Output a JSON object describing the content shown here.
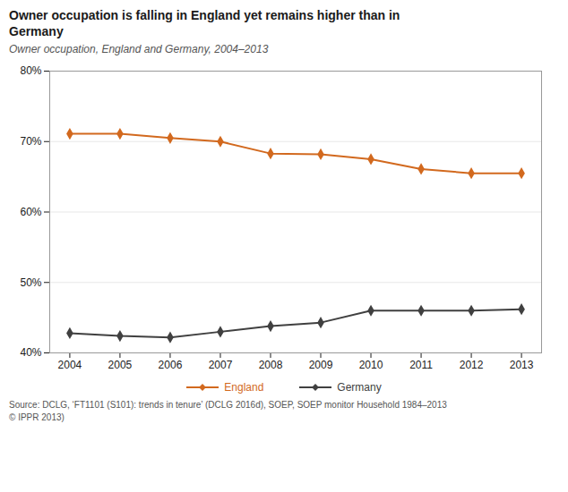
{
  "chart_data": {
    "type": "line",
    "title": "Owner occupation is falling in England yet remains higher than in\nGermany",
    "subtitle": "Owner occupation, England and Germany, 2004–2013",
    "source": "Source: DCLG, ‘FT1101 (S101): trends in tenure’ (DCLG 2016d), SOEP, SOEP monitor Household 1984–2013\n© IPPR 2013)",
    "x": [
      2004,
      2005,
      2006,
      2007,
      2008,
      2009,
      2010,
      2011,
      2012,
      2013
    ],
    "xlim": [
      2003.6,
      2013.4
    ],
    "xticks": [
      2004,
      2005,
      2006,
      2007,
      2008,
      2009,
      2010,
      2011,
      2012,
      2013
    ],
    "ylim": [
      0.4,
      0.8
    ],
    "yticks": [
      {
        "value": 0.4,
        "label": "40%"
      },
      {
        "value": 0.5,
        "label": "50%"
      },
      {
        "value": 0.6,
        "label": "60%"
      },
      {
        "value": 0.7,
        "label": "70%"
      },
      {
        "value": 0.8,
        "label": "80%"
      }
    ],
    "grid": true,
    "legend": "bottom",
    "marker": "diamond",
    "series": [
      {
        "name": "England",
        "color": "#D2691E",
        "values": [
          0.711,
          0.711,
          0.705,
          0.7,
          0.683,
          0.682,
          0.675,
          0.661,
          0.655,
          0.655
        ]
      },
      {
        "name": "Germany",
        "color": "#404040",
        "values": [
          0.428,
          0.424,
          0.422,
          0.43,
          0.438,
          0.443,
          0.46,
          0.46,
          0.46,
          0.462
        ]
      }
    ]
  }
}
